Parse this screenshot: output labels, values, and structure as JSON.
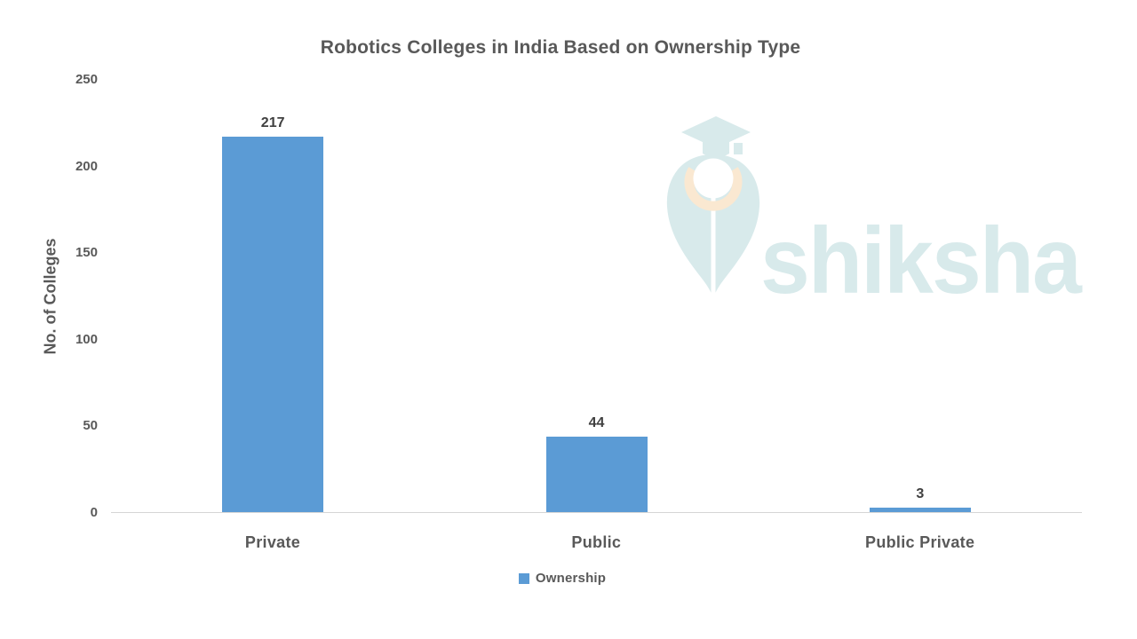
{
  "chart_data": {
    "type": "bar",
    "title": "Robotics Colleges in India Based on Ownership Type",
    "categories": [
      "Private",
      "Public",
      "Public Private"
    ],
    "series": [
      {
        "name": "Ownership",
        "values": [
          217,
          44,
          3
        ]
      }
    ],
    "data_labels": [
      "217",
      "44",
      "3"
    ],
    "xlabel": "",
    "ylabel": "No. of Colleges",
    "ylim": [
      0,
      250
    ],
    "yticks": [
      0,
      50,
      100,
      150,
      200,
      250
    ],
    "grid": false,
    "legend_position": "bottom",
    "bar_color": "#5B9BD5"
  },
  "watermark": {
    "text": "shiksha"
  },
  "colors": {
    "bar": "#5B9BD5",
    "title_text": "#595959",
    "axis_text": "#595959",
    "value_label_text": "#404040",
    "axis_line": "#D6D6D6",
    "watermark_teal": "#D8EAEB",
    "watermark_peach": "#FAE8D1"
  }
}
